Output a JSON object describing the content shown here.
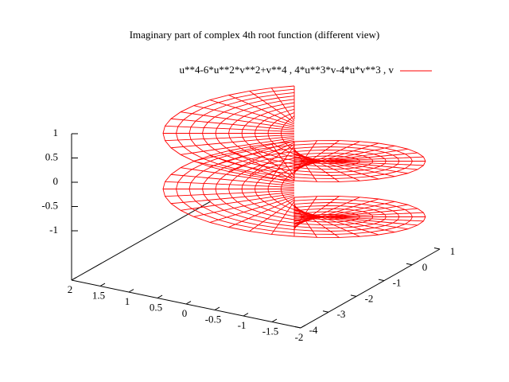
{
  "chart_data": {
    "type": "surface3d",
    "title": "Imaginary part of complex 4th root function (different view)",
    "series": [
      {
        "name": "u**4-6*u**2*v**2+v**4 , 4*u**3*v-4*u*v**3 , v",
        "color": "#ff0000"
      }
    ],
    "xlim": [
      2,
      -2
    ],
    "xticks": [
      2,
      1.5,
      1,
      0.5,
      0,
      -0.5,
      -1,
      -1.5,
      -2
    ],
    "ylim": [
      -4,
      1
    ],
    "yticks": [
      -4,
      -3,
      -2,
      -1,
      0,
      1
    ],
    "zlim": [
      -1,
      1
    ],
    "zticks": [
      1,
      0.5,
      0,
      -0.5,
      -1
    ]
  }
}
